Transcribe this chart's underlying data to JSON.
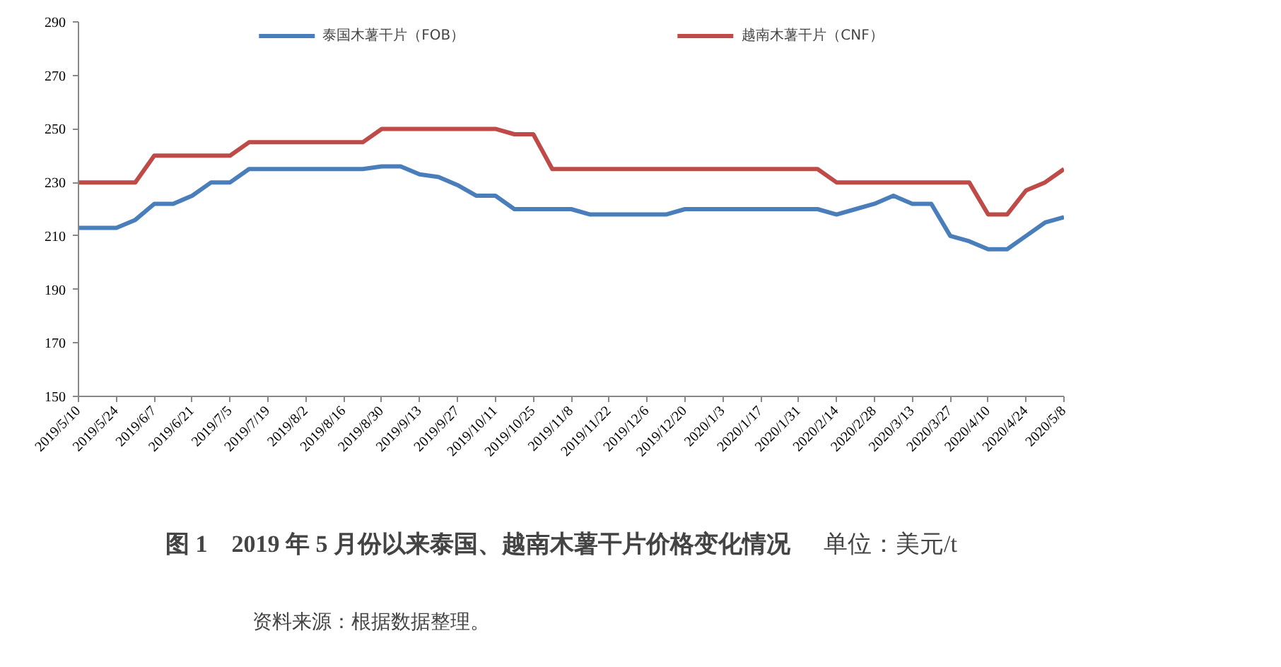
{
  "chart_data": {
    "type": "line",
    "title": "图 1　2019 年 5 月份以来泰国、越南木薯干片价格变化情况",
    "annotations": [
      "单位：美元/t",
      "资料来源：根据数据整理。"
    ],
    "categories": [
      "2019/5/10",
      null,
      "2019/5/24",
      null,
      "2019/6/7",
      null,
      "2019/6/21",
      null,
      "2019/7/5",
      null,
      "2019/7/19",
      null,
      "2019/8/2",
      null,
      "2019/8/16",
      null,
      "2019/8/30",
      null,
      "2019/9/13",
      null,
      "2019/9/27",
      null,
      "2019/10/11",
      null,
      "2019/10/25",
      null,
      "2019/11/8",
      null,
      "2019/11/22",
      null,
      "2019/12/6",
      null,
      "2019/12/20",
      null,
      "2020/1/3",
      null,
      "2020/1/17",
      null,
      "2020/1/31",
      null,
      "2020/2/14",
      null,
      "2020/2/28",
      null,
      "2020/3/13",
      null,
      "2020/3/27",
      null,
      "2020/4/10",
      null,
      "2020/4/24",
      null,
      "2020/5/8"
    ],
    "series": [
      {
        "name": "泰国木薯干片（FOB）",
        "color": "#4a7ebb",
        "values": [
          213,
          213,
          213,
          216,
          222,
          222,
          225,
          230,
          230,
          235,
          235,
          235,
          235,
          235,
          235,
          235,
          236,
          236,
          233,
          232,
          229,
          225,
          225,
          220,
          220,
          220,
          220,
          218,
          218,
          218,
          218,
          218,
          220,
          220,
          220,
          220,
          220,
          220,
          220,
          220,
          218,
          220,
          222,
          225,
          222,
          222,
          210,
          208,
          205,
          205,
          210,
          215,
          217
        ]
      },
      {
        "name": "越南木薯干片（CNF）",
        "color": "#be4b48",
        "values": [
          230,
          230,
          230,
          230,
          240,
          240,
          240,
          240,
          240,
          245,
          245,
          245,
          245,
          245,
          245,
          245,
          250,
          250,
          250,
          250,
          250,
          250,
          250,
          248,
          248,
          235,
          235,
          235,
          235,
          235,
          235,
          235,
          235,
          235,
          235,
          235,
          235,
          235,
          235,
          235,
          230,
          230,
          230,
          230,
          230,
          230,
          230,
          230,
          218,
          218,
          227,
          230,
          235
        ]
      }
    ],
    "ylim": [
      150,
      290
    ],
    "yticks": [
      150,
      170,
      190,
      210,
      230,
      250,
      270,
      290
    ],
    "legend": "top",
    "grid": false,
    "marker": "none",
    "line_style": "solid"
  }
}
